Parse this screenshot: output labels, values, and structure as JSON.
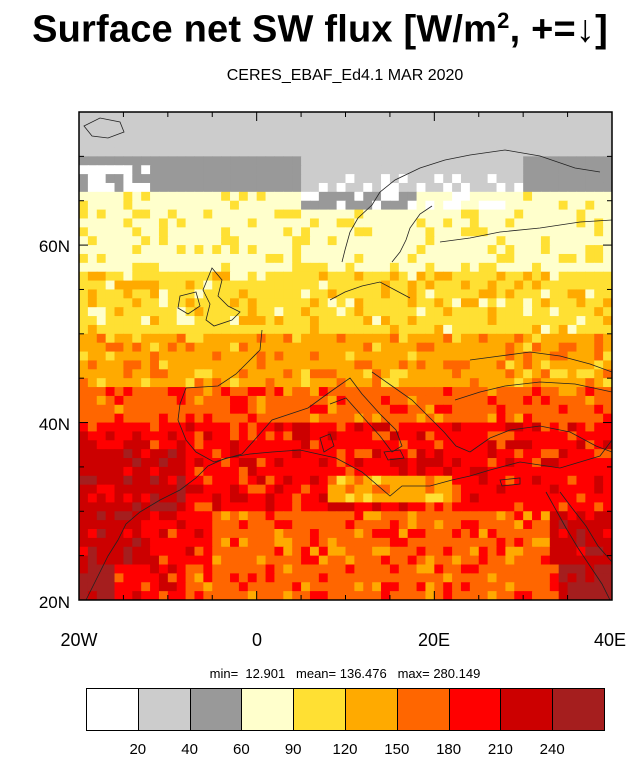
{
  "title": {
    "main": "Surface net SW flux [W/m",
    "sup": "2",
    "tail": ", +=↓]"
  },
  "subtitle": "CERES_EBAF_Ed4.1 MAR 2020",
  "stats": {
    "text": "min=  12.901   mean= 136.476   max= 280.149"
  },
  "map": {
    "lon_range": [
      -20,
      40
    ],
    "lat_range": [
      20,
      75
    ],
    "lon_ticks": [
      "20W",
      "0",
      "20E",
      "40E"
    ],
    "lat_ticks": [
      "60N",
      "40N",
      "20N"
    ]
  },
  "colorbar": {
    "levels": [
      "20",
      "40",
      "60",
      "90",
      "120",
      "150",
      "180",
      "210",
      "240"
    ],
    "colors": [
      "#ffffff",
      "#cccccc",
      "#999999",
      "#ffffcc",
      "#ffe033",
      "#ffaa00",
      "#ff6600",
      "#ff0000",
      "#cc0000",
      "#a51e1e"
    ]
  },
  "chart_data": {
    "type": "heatmap",
    "title": "Surface net SW flux [W/m2, +=↓]",
    "subtitle": "CERES_EBAF_Ed4.1 MAR 2020",
    "x_range": [
      -20,
      40
    ],
    "y_range": [
      20,
      75
    ],
    "x_ticks": [
      "20W",
      "0",
      "20E",
      "40E"
    ],
    "y_ticks": [
      "60N",
      "40N",
      "20N"
    ],
    "min": 12.901,
    "mean": 136.476,
    "max": 280.149,
    "contour_levels": [
      20,
      40,
      60,
      90,
      120,
      150,
      180,
      210,
      240
    ],
    "latitude_bands": [
      {
        "lat_range": [
          65,
          75
        ],
        "value_range": [
          20,
          60
        ]
      },
      {
        "lat_range": [
          58,
          65
        ],
        "value_range": [
          60,
          90
        ]
      },
      {
        "lat_range": [
          50,
          58
        ],
        "value_range": [
          90,
          120
        ]
      },
      {
        "lat_range": [
          43,
          50
        ],
        "value_range": [
          120,
          150
        ]
      },
      {
        "lat_range": [
          37,
          43
        ],
        "value_range": [
          150,
          180
        ]
      },
      {
        "lat_range": [
          20,
          37
        ],
        "value_range": [
          180,
          280
        ]
      }
    ]
  }
}
